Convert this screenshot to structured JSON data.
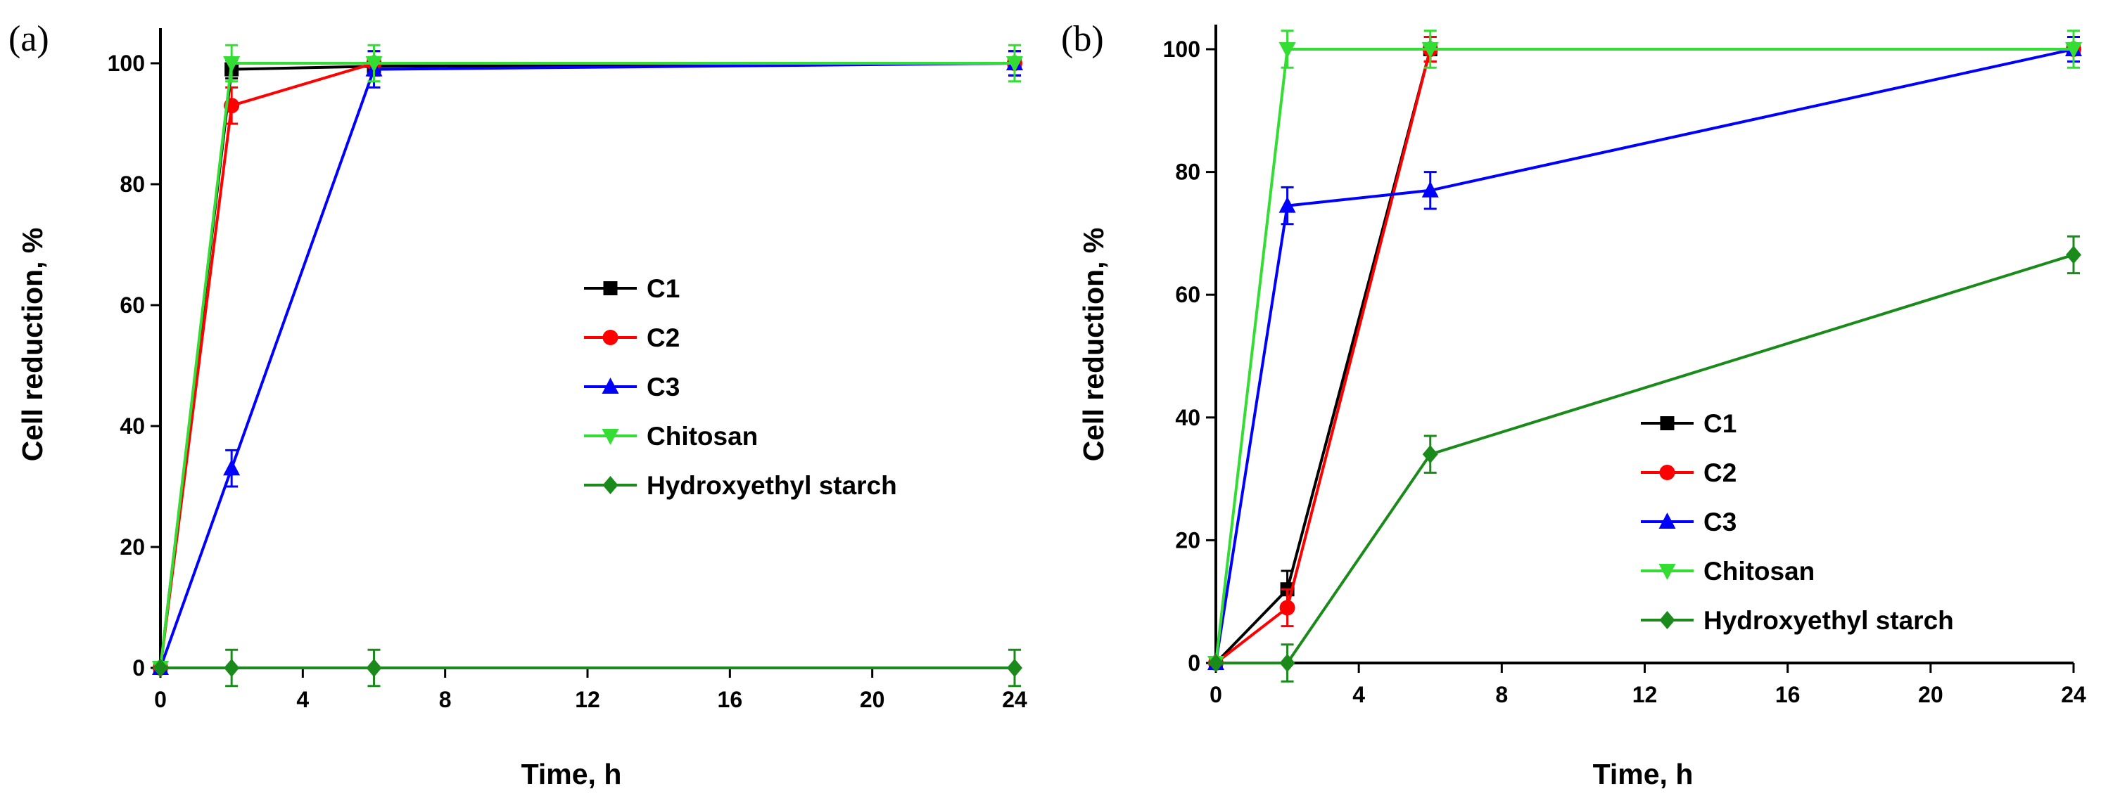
{
  "chart_data": [
    {
      "type": "line",
      "panel_label": "(a)",
      "xlabel": "Time, h",
      "ylabel": "Cell reduction, %",
      "xlim": [
        0,
        24
      ],
      "ylim": [
        0,
        100
      ],
      "x_ticks": [
        0,
        4,
        8,
        12,
        16,
        20,
        24
      ],
      "y_ticks": [
        0,
        20,
        40,
        60,
        80,
        100
      ],
      "legend_position": "center-right",
      "series": [
        {
          "name": "C1",
          "color": "#000000",
          "marker": "square",
          "x": [
            0,
            2,
            6,
            24
          ],
          "y": [
            0,
            99,
            99.5,
            100
          ],
          "err": [
            0,
            1.5,
            1.5,
            2
          ]
        },
        {
          "name": "C2",
          "color": "#ff0000",
          "marker": "circle",
          "x": [
            0,
            2,
            6,
            24
          ],
          "y": [
            0,
            93,
            100,
            100
          ],
          "err": [
            0,
            3,
            2,
            2
          ]
        },
        {
          "name": "C3",
          "color": "#0000ff",
          "marker": "triangle-up",
          "x": [
            0,
            2,
            6,
            24
          ],
          "y": [
            0,
            33,
            99,
            100
          ],
          "err": [
            0,
            3,
            3,
            2
          ]
        },
        {
          "name": "Chitosan",
          "color": "#33dd33",
          "marker": "triangle-down",
          "x": [
            0,
            2,
            6,
            24
          ],
          "y": [
            0,
            100,
            100,
            100
          ],
          "err": [
            0,
            3,
            3,
            3
          ]
        },
        {
          "name": "Hydroxyethyl starch",
          "color": "#1a8a1a",
          "marker": "diamond",
          "x": [
            0,
            2,
            6,
            24
          ],
          "y": [
            0,
            0,
            0,
            0
          ],
          "err": [
            0,
            3,
            3,
            3
          ]
        }
      ]
    },
    {
      "type": "line",
      "panel_label": "(b)",
      "xlabel": "Time, h",
      "ylabel": "Cell reduction, %",
      "xlim": [
        0,
        24
      ],
      "ylim": [
        0,
        100
      ],
      "x_ticks": [
        0,
        4,
        8,
        12,
        16,
        20,
        24
      ],
      "y_ticks": [
        0,
        20,
        40,
        60,
        80,
        100
      ],
      "legend_position": "lower-right",
      "series": [
        {
          "name": "C1",
          "color": "#000000",
          "marker": "square",
          "x": [
            0,
            2,
            6,
            24
          ],
          "y": [
            0,
            12,
            100,
            100
          ],
          "err": [
            0,
            3,
            2,
            2
          ]
        },
        {
          "name": "C2",
          "color": "#ff0000",
          "marker": "circle",
          "x": [
            0,
            2,
            6,
            24
          ],
          "y": [
            0,
            9,
            100,
            100
          ],
          "err": [
            0,
            3,
            2,
            2
          ]
        },
        {
          "name": "C3",
          "color": "#0000ff",
          "marker": "triangle-up",
          "x": [
            0,
            2,
            6,
            24
          ],
          "y": [
            0,
            74.5,
            77,
            100
          ],
          "err": [
            0,
            3,
            3,
            2
          ]
        },
        {
          "name": "Chitosan",
          "color": "#33dd33",
          "marker": "triangle-down",
          "x": [
            0,
            2,
            6,
            24
          ],
          "y": [
            0,
            100,
            100,
            100
          ],
          "err": [
            0,
            3,
            3,
            3
          ]
        },
        {
          "name": "Hydroxyethyl starch",
          "color": "#1a8a1a",
          "marker": "diamond",
          "x": [
            0,
            2,
            6,
            24
          ],
          "y": [
            0,
            0,
            34,
            66.5
          ],
          "err": [
            0,
            3,
            3,
            3
          ]
        }
      ]
    }
  ]
}
